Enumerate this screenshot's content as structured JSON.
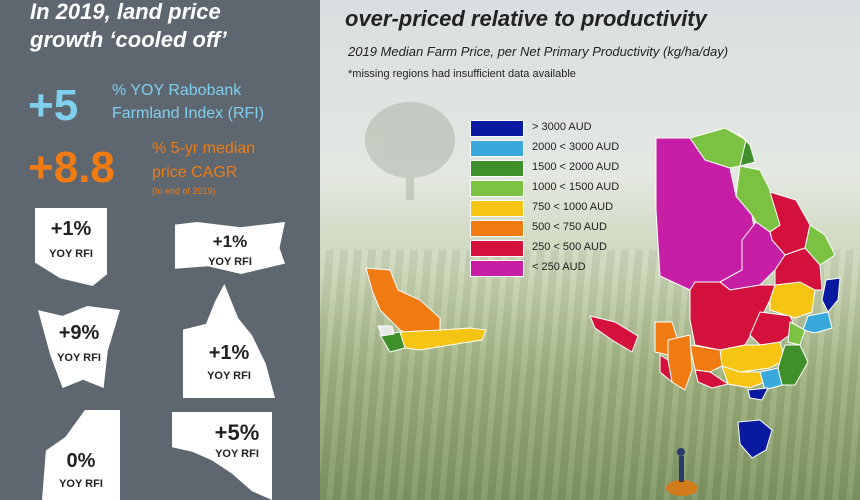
{
  "left": {
    "headline_line1": "In 2019, land price",
    "headline_line2": "growth ‘cooled off’",
    "rfi_value": "+5",
    "rfi_line1": "% YOY Rabobank",
    "rfi_line2": "Farmland Index (RFI)",
    "cagr_value": "+8.8",
    "cagr_line1": "% 5-yr median",
    "cagr_line2": "price CAGR",
    "cagr_note": "(to end of 2019)",
    "states": [
      {
        "name": "nsw",
        "value": "+1%",
        "label": "YOY RFI"
      },
      {
        "name": "vic",
        "value": "+1%",
        "label": "YOY RFI"
      },
      {
        "name": "tas",
        "value": "+9%",
        "label": "YOY RFI"
      },
      {
        "name": "qld",
        "value": "+1%",
        "label": "YOY RFI"
      },
      {
        "name": "wa",
        "value": "0%",
        "label": "YOY RFI"
      },
      {
        "name": "sa",
        "value": "+5%",
        "label": "YOY RFI"
      }
    ]
  },
  "right": {
    "title_line2": "over-priced relative to productivity",
    "subtitle": "2019 Median Farm Price, per Net Primary Productivity (kg/ha/day)",
    "note": "*missing regions had insufficient data available"
  },
  "legend": [
    {
      "label": "> 3000 AUD",
      "color": "#0a1aa0"
    },
    {
      "label": "2000 < 3000 AUD",
      "color": "#39a9dc"
    },
    {
      "label": "1500 < 2000 AUD",
      "color": "#3f8f2a"
    },
    {
      "label": "1000 < 1500 AUD",
      "color": "#7cc242"
    },
    {
      "label": "750 < 1000 AUD",
      "color": "#f6c514"
    },
    {
      "label": "500 < 750 AUD",
      "color": "#f07b12"
    },
    {
      "label": "250 <  500 AUD",
      "color": "#d4103c"
    },
    {
      "label": "< 250 AUD",
      "color": "#c71ea6"
    }
  ],
  "colors": {
    "panel": "#5e6770",
    "rfi_accent": "#7fd0ee",
    "cagr_accent": "#f07b12"
  }
}
